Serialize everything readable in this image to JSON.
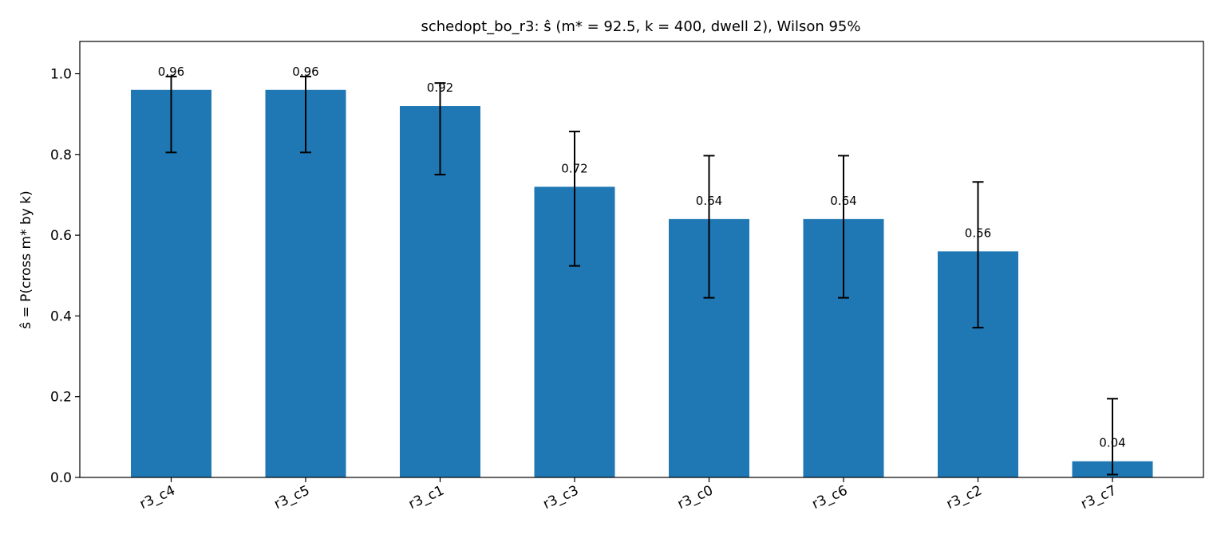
{
  "chart_data": {
    "type": "bar",
    "title": "schedopt_bo_r3: ŝ (m* = 92.5, k = 400, dwell 2), Wilson 95%",
    "xlabel": "",
    "ylabel": "ŝ = P(cross m* by k)",
    "categories": [
      "r3_c4",
      "r3_c5",
      "r3_c1",
      "r3_c3",
      "r3_c0",
      "r3_c6",
      "r3_c2",
      "r3_c7"
    ],
    "values": [
      0.96,
      0.96,
      0.92,
      0.72,
      0.64,
      0.64,
      0.56,
      0.04
    ],
    "value_labels": [
      "0.96",
      "0.96",
      "0.92",
      "0.72",
      "0.64",
      "0.64",
      "0.56",
      "0.04"
    ],
    "error_low": [
      0.805,
      0.805,
      0.75,
      0.524,
      0.445,
      0.445,
      0.371,
      0.007
    ],
    "error_high": [
      0.993,
      0.993,
      0.977,
      0.857,
      0.797,
      0.797,
      0.732,
      0.195
    ],
    "ylim": [
      0,
      1.08
    ],
    "yticks": [
      0.0,
      0.2,
      0.4,
      0.6,
      0.8,
      1.0
    ],
    "ytick_labels": [
      "0.0",
      "0.2",
      "0.4",
      "0.6",
      "0.8",
      "1.0"
    ],
    "grid": false,
    "bar_color": "#1f77b4",
    "error_color": "#000000"
  }
}
